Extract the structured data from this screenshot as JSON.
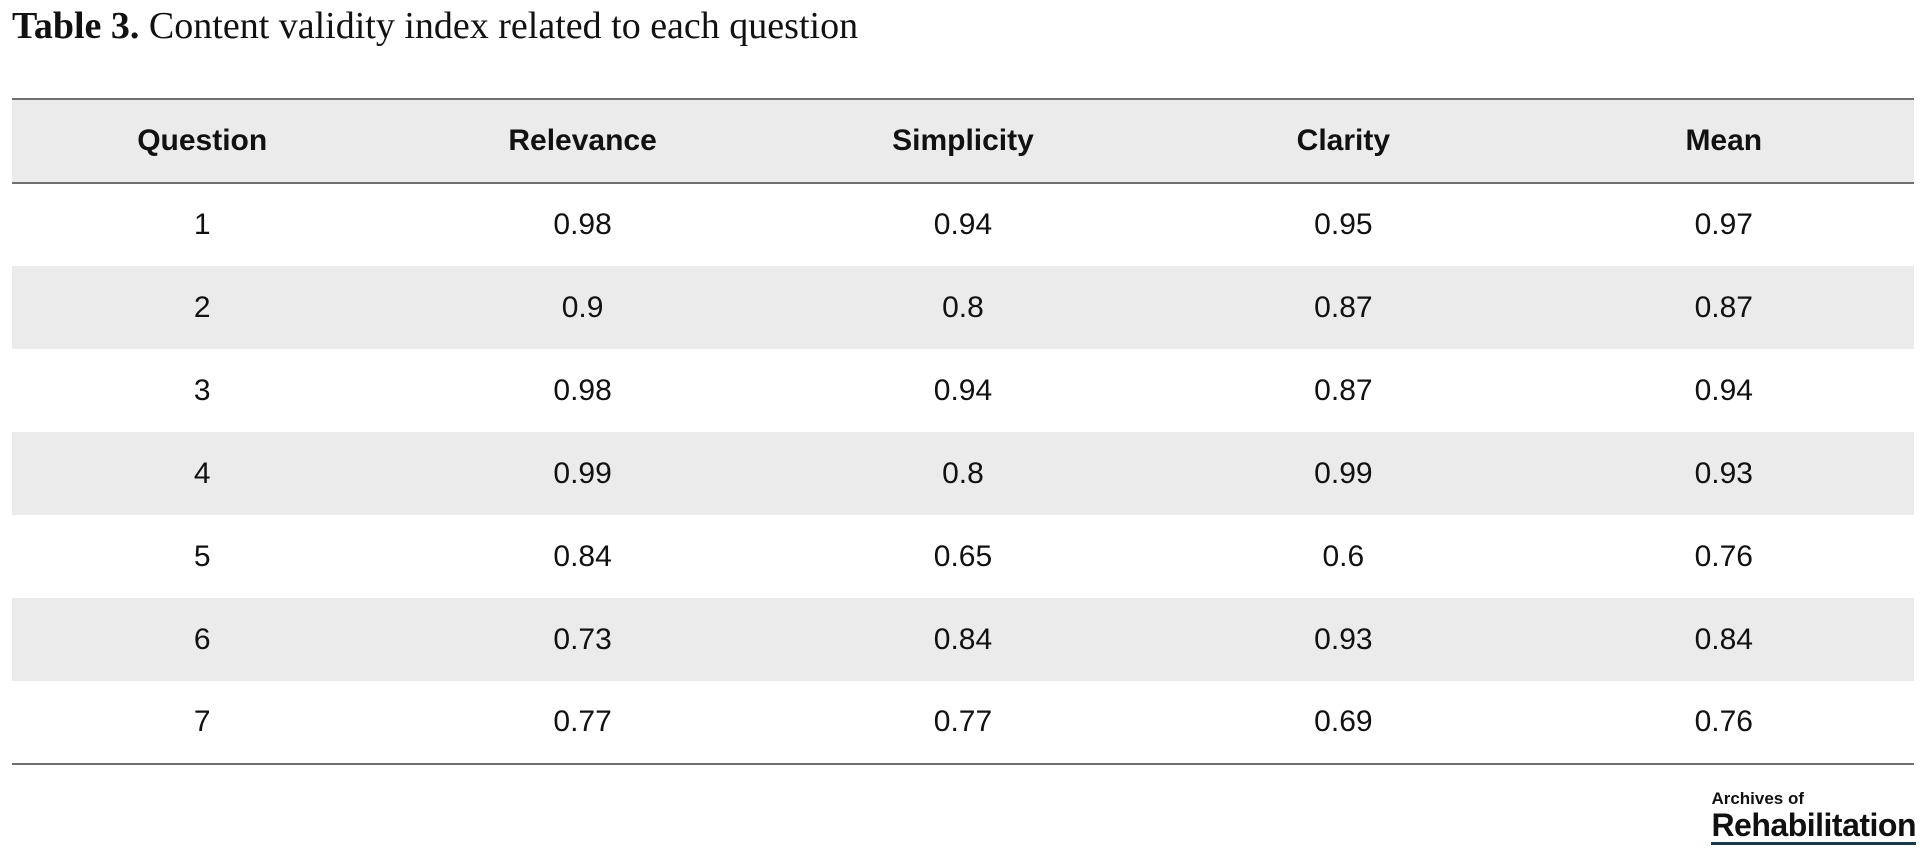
{
  "caption": {
    "label": "Table 3.",
    "text": "Content validity index related to each question"
  },
  "table": {
    "headers": [
      "Question",
      "Relevance",
      "Simplicity",
      "Clarity",
      "Mean"
    ],
    "rows": [
      [
        "1",
        "0.98",
        "0.94",
        "0.95",
        "0.97"
      ],
      [
        "2",
        "0.9",
        "0.8",
        "0.87",
        "0.87"
      ],
      [
        "3",
        "0.98",
        "0.94",
        "0.87",
        "0.94"
      ],
      [
        "4",
        "0.99",
        "0.8",
        "0.99",
        "0.93"
      ],
      [
        "5",
        "0.84",
        "0.65",
        "0.6",
        "0.76"
      ],
      [
        "6",
        "0.73",
        "0.84",
        "0.93",
        "0.84"
      ],
      [
        "7",
        "0.77",
        "0.77",
        "0.69",
        "0.76"
      ]
    ]
  },
  "logo": {
    "line1": "Archives of",
    "line2": "Rehabilitation"
  },
  "colors": {
    "band": "#ebebeb",
    "rule": "#6f6f6f"
  }
}
